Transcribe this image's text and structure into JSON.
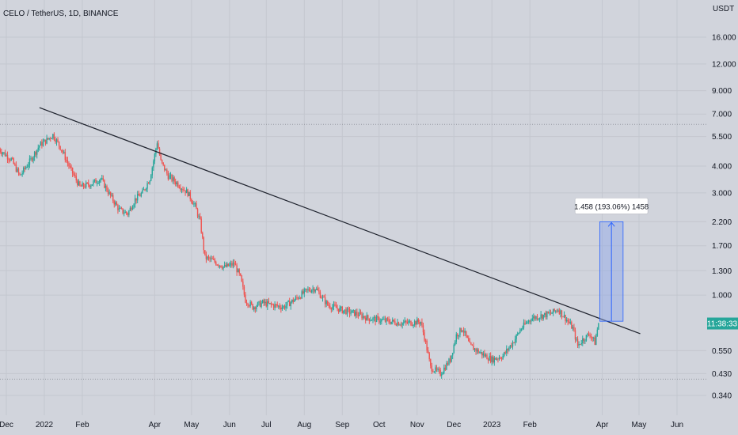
{
  "header": {
    "title": "CELO / TetherUS, 1D, BINANCE"
  },
  "colors": {
    "background": "#d1d4dc",
    "grid": "#c4c7cf",
    "up": "#26a69a",
    "down": "#ef5350",
    "trendline": "#1e222d",
    "measure_fill": "#8ba7e8",
    "measure_line": "#2962ff",
    "price_badge": "#26a69a"
  },
  "chart_data": {
    "type": "candlestick",
    "title": "CELO / TetherUS, 1D, BINANCE",
    "y_scale": "log",
    "y_unit": "USDT",
    "y_ticks": [
      "16.000",
      "12.000",
      "9.000",
      "7.000",
      "5.500",
      "4.000",
      "3.000",
      "2.200",
      "1.700",
      "1.300",
      "1.000",
      "0.550",
      "0.430",
      "0.340"
    ],
    "y_tick_values": [
      16.0,
      12.0,
      9.0,
      7.0,
      5.5,
      4.0,
      3.0,
      2.2,
      1.7,
      1.3,
      1.0,
      0.55,
      0.43,
      0.34
    ],
    "x_ticks": [
      "Dec",
      "2022",
      "Feb",
      "Apr",
      "May",
      "Jun",
      "Jul",
      "Aug",
      "Sep",
      "Oct",
      "Nov",
      "Dec",
      "2023",
      "Feb",
      "Apr",
      "May",
      "Jun"
    ],
    "x_tick_dates": [
      "2021-12-01",
      "2022-01-01",
      "2022-02-01",
      "2022-04-01",
      "2022-05-01",
      "2022-06-01",
      "2022-07-01",
      "2022-08-01",
      "2022-09-01",
      "2022-10-01",
      "2022-11-01",
      "2022-12-01",
      "2023-01-01",
      "2023-02-01",
      "2023-04-01",
      "2023-05-01",
      "2023-06-01"
    ],
    "price_path": [
      [
        "2021-11-25",
        4.8
      ],
      [
        "2021-12-05",
        4.3
      ],
      [
        "2021-12-12",
        3.6
      ],
      [
        "2021-12-20",
        4.2
      ],
      [
        "2021-12-28",
        5.0
      ],
      [
        "2022-01-03",
        5.3
      ],
      [
        "2022-01-08",
        5.6
      ],
      [
        "2022-01-15",
        4.8
      ],
      [
        "2022-01-22",
        3.9
      ],
      [
        "2022-01-30",
        3.2
      ],
      [
        "2022-02-08",
        3.3
      ],
      [
        "2022-02-16",
        3.5
      ],
      [
        "2022-02-24",
        2.9
      ],
      [
        "2022-03-03",
        2.5
      ],
      [
        "2022-03-10",
        2.4
      ],
      [
        "2022-03-16",
        2.8
      ],
      [
        "2022-03-22",
        3.0
      ],
      [
        "2022-03-28",
        3.5
      ],
      [
        "2022-04-01",
        4.5
      ],
      [
        "2022-04-03",
        5.2
      ],
      [
        "2022-04-06",
        4.2
      ],
      [
        "2022-04-12",
        3.6
      ],
      [
        "2022-04-20",
        3.3
      ],
      [
        "2022-04-28",
        3.0
      ],
      [
        "2022-05-04",
        2.6
      ],
      [
        "2022-05-08",
        2.2
      ],
      [
        "2022-05-12",
        1.5
      ],
      [
        "2022-05-18",
        1.45
      ],
      [
        "2022-05-28",
        1.35
      ],
      [
        "2022-06-05",
        1.4
      ],
      [
        "2022-06-10",
        1.2
      ],
      [
        "2022-06-14",
        0.95
      ],
      [
        "2022-06-20",
        0.88
      ],
      [
        "2022-06-28",
        0.92
      ],
      [
        "2022-07-05",
        0.9
      ],
      [
        "2022-07-15",
        0.88
      ],
      [
        "2022-07-25",
        0.96
      ],
      [
        "2022-08-03",
        1.05
      ],
      [
        "2022-08-10",
        1.08
      ],
      [
        "2022-08-20",
        0.9
      ],
      [
        "2022-09-01",
        0.85
      ],
      [
        "2022-09-12",
        0.82
      ],
      [
        "2022-09-22",
        0.78
      ],
      [
        "2022-10-05",
        0.76
      ],
      [
        "2022-10-20",
        0.74
      ],
      [
        "2022-11-04",
        0.75
      ],
      [
        "2022-11-08",
        0.6
      ],
      [
        "2022-11-12",
        0.46
      ],
      [
        "2022-11-20",
        0.43
      ],
      [
        "2022-11-28",
        0.5
      ],
      [
        "2022-12-03",
        0.65
      ],
      [
        "2022-12-08",
        0.7
      ],
      [
        "2022-12-14",
        0.58
      ],
      [
        "2022-12-22",
        0.54
      ],
      [
        "2023-01-01",
        0.5
      ],
      [
        "2023-01-10",
        0.52
      ],
      [
        "2023-01-18",
        0.6
      ],
      [
        "2023-01-25",
        0.7
      ],
      [
        "2023-02-02",
        0.78
      ],
      [
        "2023-02-10",
        0.8
      ],
      [
        "2023-02-18",
        0.82
      ],
      [
        "2023-02-24",
        0.86
      ],
      [
        "2023-03-02",
        0.78
      ],
      [
        "2023-03-08",
        0.7
      ],
      [
        "2023-03-12",
        0.58
      ],
      [
        "2023-03-16",
        0.62
      ],
      [
        "2023-03-22",
        0.66
      ],
      [
        "2023-03-26",
        0.6
      ],
      [
        "2023-03-29",
        0.74
      ]
    ],
    "trendline": {
      "start": [
        "2021-12-28",
        7.5
      ],
      "end": [
        "2023-05-02",
        0.66
      ]
    },
    "measure": {
      "start_date": "2023-03-30",
      "end_date": "2023-04-18",
      "from_price": 0.755,
      "to_price": 2.2,
      "label": "1.458 (193.06%) 1458"
    },
    "dotted_levels": [
      6.27,
      0.405
    ],
    "current_price_label": "11:38:33",
    "grid": true,
    "legend": "none"
  }
}
